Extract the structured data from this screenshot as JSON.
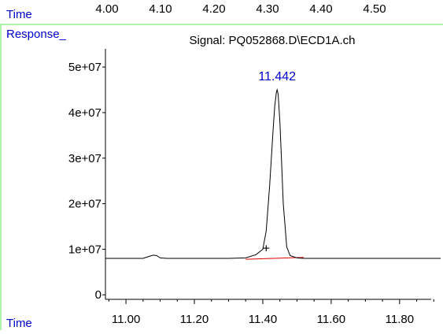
{
  "header": {
    "time_label": "Time",
    "time_ticks": [
      "4.00",
      "4.10",
      "4.20",
      "4.30",
      "4.40",
      "4.50"
    ]
  },
  "chart_data": {
    "type": "line",
    "title": "Signal: PQ052868.D\\ECD1A.ch",
    "ylabel": "Response_",
    "xlabel": "Time",
    "xlim": [
      10.94,
      11.92
    ],
    "ylim": [
      -1000000,
      54000000
    ],
    "x_ticks": [
      11.0,
      11.2,
      11.4,
      11.6,
      11.8
    ],
    "x_tick_labels": [
      "11.00",
      "11.20",
      "11.40",
      "11.60",
      "11.80"
    ],
    "y_ticks": [
      0,
      10000000,
      20000000,
      30000000,
      40000000,
      50000000
    ],
    "y_tick_labels": [
      "0",
      "1e+07",
      "2e+07",
      "3e+07",
      "4e+07",
      "5e+07"
    ],
    "grid": false,
    "series": [
      {
        "color": "#000000",
        "x": [
          10.94,
          11.0,
          11.05,
          11.07,
          11.08,
          11.09,
          11.1,
          11.12,
          11.2,
          11.3,
          11.35,
          11.38,
          11.4,
          11.41,
          11.42,
          11.43,
          11.435,
          11.44,
          11.442,
          11.445,
          11.45,
          11.455,
          11.46,
          11.47,
          11.48,
          11.5,
          11.52,
          11.6,
          11.7,
          11.8,
          11.92
        ],
        "y": [
          8000000,
          8000000,
          8000000,
          8500000,
          8700000,
          8600000,
          8100000,
          8000000,
          8000000,
          8000000,
          8100000,
          8800000,
          10000000,
          14000000,
          24000000,
          36000000,
          41500000,
          44500000,
          45000000,
          44000000,
          38000000,
          29000000,
          20000000,
          10500000,
          8600000,
          8100000,
          8000000,
          8000000,
          8000000,
          8000000,
          8000000
        ]
      }
    ],
    "baseline": {
      "color": "#dd0000",
      "x": [
        11.35,
        11.52
      ],
      "y": [
        7800000,
        8200000
      ]
    },
    "peak_label": {
      "text": "11.442",
      "x": 11.442,
      "y": 45000000,
      "color": "#0000cc"
    },
    "marker": {
      "symbol": "+",
      "x": 11.41,
      "y": 10000000
    }
  }
}
